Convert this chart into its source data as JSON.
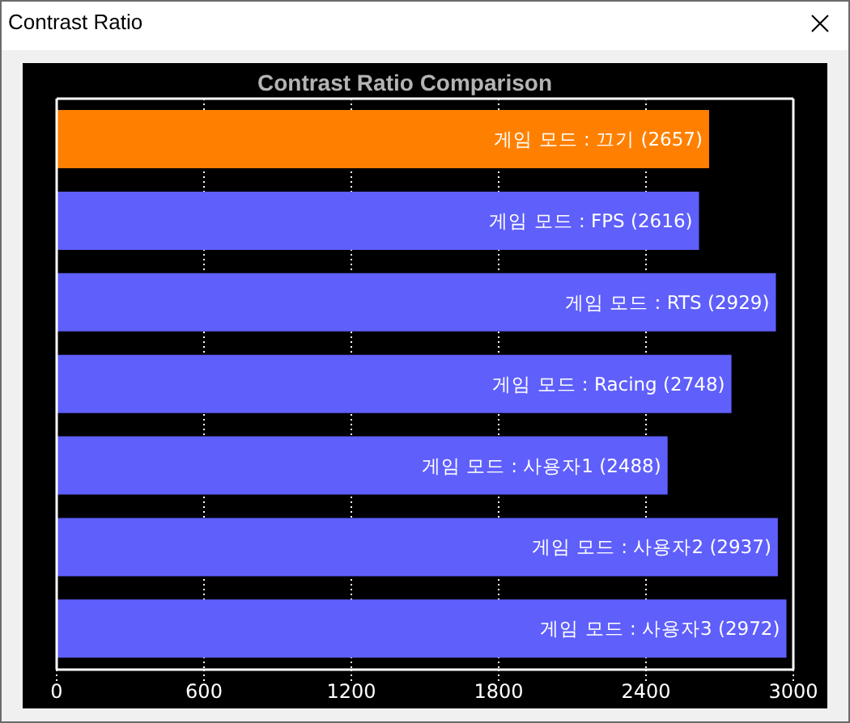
{
  "chart_data": {
    "type": "bar",
    "orientation": "horizontal",
    "title": "Contrast Ratio Comparison",
    "annotations": [
      "Contrast Ratio"
    ],
    "categories": [
      "게임 모드 : 끄기",
      "게임 모드 : FPS",
      "게임 모드 : RTS",
      "게임 모드 : Racing",
      "게임 모드 : 사용자1",
      "게임 모드 : 사용자2",
      "게임 모드 : 사용자3"
    ],
    "values": [
      2657,
      2616,
      2929,
      2748,
      2488,
      2937,
      2972
    ],
    "value_labels": [
      "(2657)",
      "(2616)",
      "(2929)",
      "(2748)",
      "(2488)",
      "(2937)",
      "(2972)"
    ],
    "colors": [
      "#ff8000",
      "#5f5ffc",
      "#5f5ffc",
      "#5f5ffc",
      "#5f5ffc",
      "#5f5ffc",
      "#5f5ffc"
    ],
    "xlim": [
      0,
      3000
    ],
    "xticks": [
      0,
      600,
      1200,
      1800,
      2400,
      3000
    ],
    "grid": "x",
    "tick_labels": "x"
  }
}
